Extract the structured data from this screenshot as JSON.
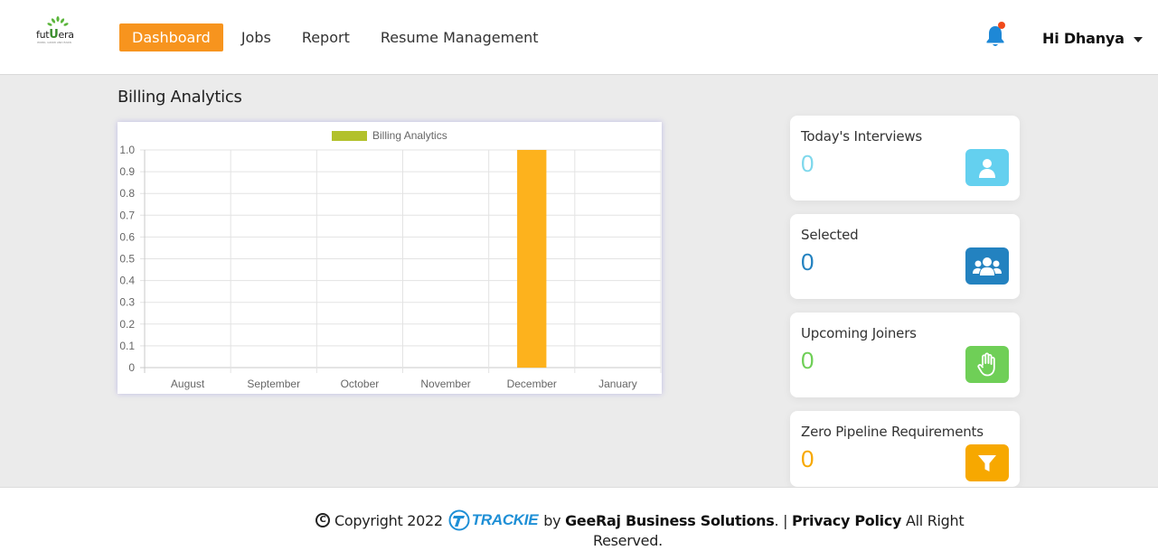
{
  "header": {
    "logo": {
      "name": "futUera",
      "prefix": "fut",
      "highlight": "U",
      "suffix": "era",
      "tagline": "WORK, GROW AND EARN"
    },
    "nav": [
      {
        "label": "Dashboard",
        "active": true
      },
      {
        "label": "Jobs",
        "active": false
      },
      {
        "label": "Report",
        "active": false
      },
      {
        "label": "Resume Management",
        "active": false
      }
    ],
    "notification_icon": "bell-icon",
    "user_greeting": "Hi Dhanya"
  },
  "main": {
    "section_title": "Billing Analytics",
    "stats": [
      {
        "label": "Today's Interviews",
        "value": "0",
        "icon": "user-icon",
        "value_color": "#7fd8ec",
        "icon_bg": "#64d0ef"
      },
      {
        "label": "Selected",
        "value": "0",
        "icon": "users-group-icon",
        "value_color": "#2382c0",
        "icon_bg": "#2382c0"
      },
      {
        "label": "Upcoming Joiners",
        "value": "0",
        "icon": "hand-icon",
        "value_color": "#6fcf57",
        "icon_bg": "#6fcf57"
      },
      {
        "label": "Zero Pipeline Requirements",
        "value": "0",
        "icon": "filter-icon",
        "value_color": "#f7a800",
        "icon_bg": "#f7a800"
      }
    ]
  },
  "chart_data": {
    "type": "bar",
    "categories": [
      "August",
      "September",
      "October",
      "November",
      "December",
      "January"
    ],
    "series": [
      {
        "name": "Billing Analytics",
        "values": [
          0,
          0,
          0,
          0,
          1,
          0
        ],
        "bar_color": "#fdb21d",
        "legend_color": "#b2c12b"
      }
    ],
    "ylim": [
      0,
      1.0
    ],
    "yticks": [
      "0",
      "0.1",
      "0.2",
      "0.3",
      "0.4",
      "0.5",
      "0.6",
      "0.7",
      "0.8",
      "0.9",
      "1.0"
    ],
    "legend_position": "top",
    "grid": true
  },
  "footer": {
    "copyright": "Copyright 2022",
    "brand": "TRACKIE",
    "by": "by",
    "company": "GeeRaj Business Solutions",
    "separator": ". |",
    "privacy": "Privacy Policy",
    "rights": "All Right",
    "reserved": "Reserved."
  }
}
